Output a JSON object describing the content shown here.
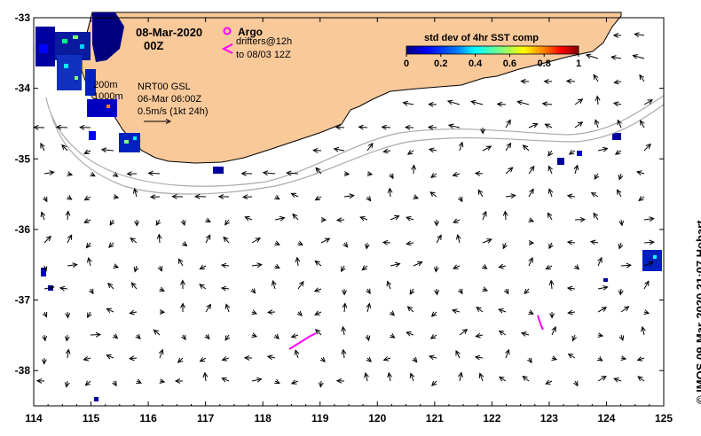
{
  "map": {
    "date_line1": "08-Mar-2020",
    "date_line2": "00Z",
    "argo_label": "Argo",
    "drifters_line1": "drifters@12h",
    "drifters_line2": "to 08/03 12Z",
    "colorbar": {
      "title": "std dev of 4hr SST comp",
      "ticks": [
        "0",
        "0.2",
        "0.4",
        "0.6",
        "0.8",
        "1"
      ],
      "colors": [
        "#00007f",
        "#0000ff",
        "#007fff",
        "#00ffff",
        "#7fff7f",
        "#ffff00",
        "#ff7f00",
        "#ff0000",
        "#7f0000"
      ]
    },
    "isobaths": {
      "shallow": "200m",
      "deep": "1000m"
    },
    "current_info": {
      "line1": "NRT00 GSL",
      "line2": "06-Mar 06:00Z",
      "line3": "0.5m/s (1kt 24h)"
    },
    "credit": "© IMOS 09-Mar-2020 21:07 Hobart",
    "x_axis": {
      "ticks": [
        "114",
        "115",
        "116",
        "117",
        "118",
        "119",
        "120",
        "121",
        "122",
        "123",
        "124",
        "125"
      ],
      "range": [
        114,
        125
      ]
    },
    "y_axis": {
      "ticks": [
        "-33",
        "-34",
        "-35",
        "-36",
        "-37",
        "-38"
      ],
      "range": [
        -38.5,
        -33
      ]
    },
    "colors": {
      "land": "#f9c99a",
      "drifter": "#ff00ff",
      "isobath": "#aaaaaa"
    }
  }
}
